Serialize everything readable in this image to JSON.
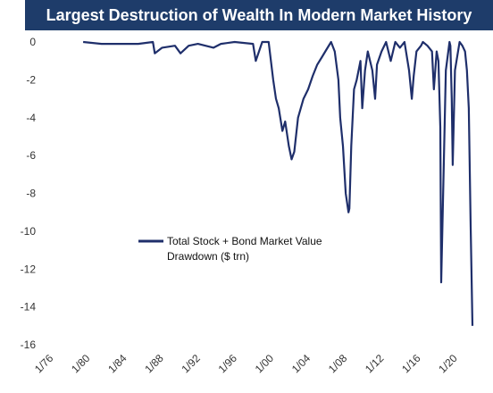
{
  "chart_data": {
    "type": "line",
    "title": "Largest Destruction of Wealth In Modern Market History",
    "xlabel": "",
    "ylabel": "",
    "x_ticks": [
      "1/76",
      "1/80",
      "1/84",
      "1/88",
      "1/92",
      "1/96",
      "1/00",
      "1/04",
      "1/08",
      "1/12",
      "1/16",
      "1/20"
    ],
    "y_ticks": [
      0,
      -2,
      -4,
      -6,
      -8,
      -10,
      -12,
      -14,
      -16
    ],
    "xlim": [
      1976.0,
      2022.5
    ],
    "ylim": [
      -16,
      0
    ],
    "grid": false,
    "legend_position": "center-left",
    "color": "#1f2f6b",
    "series": [
      {
        "name": "Total Stock + Bond Market Value Drawdown ($ trn)",
        "x": [
          1980.0,
          1982.0,
          1984.0,
          1986.0,
          1987.6,
          1987.8,
          1988.6,
          1990.0,
          1990.6,
          1991.5,
          1992.5,
          1994.2,
          1995.0,
          1996.5,
          1998.5,
          1998.8,
          1999.5,
          2000.2,
          2000.7,
          2001.0,
          2001.3,
          2001.7,
          2002.0,
          2002.4,
          2002.7,
          2003.0,
          2003.4,
          2004.0,
          2004.5,
          2005.0,
          2005.5,
          2006.0,
          2006.5,
          2007.0,
          2007.4,
          2007.8,
          2008.0,
          2008.3,
          2008.6,
          2008.9,
          2009.0,
          2009.2,
          2009.5,
          2009.8,
          2010.2,
          2010.4,
          2010.7,
          2011.0,
          2011.5,
          2011.8,
          2012.0,
          2012.5,
          2013.0,
          2013.5,
          2014.0,
          2014.5,
          2015.0,
          2015.5,
          2015.8,
          2016.0,
          2016.3,
          2016.8,
          2017.0,
          2017.5,
          2018.0,
          2018.2,
          2018.5,
          2018.7,
          2018.9,
          2019.0,
          2019.5,
          2019.9,
          2020.0,
          2020.15,
          2020.25,
          2020.5,
          2021.0,
          2021.3,
          2021.6,
          2021.8,
          2022.0,
          2022.2,
          2022.4
        ],
        "values": [
          0.0,
          -0.1,
          -0.1,
          -0.1,
          0.0,
          -0.6,
          -0.3,
          -0.2,
          -0.6,
          -0.2,
          -0.1,
          -0.3,
          -0.1,
          0.0,
          -0.1,
          -1.0,
          0.0,
          0.0,
          -2.0,
          -3.0,
          -3.5,
          -4.7,
          -4.2,
          -5.5,
          -6.2,
          -5.8,
          -4.0,
          -3.0,
          -2.5,
          -1.8,
          -1.2,
          -0.8,
          -0.4,
          0.0,
          -0.5,
          -2.0,
          -4.0,
          -5.5,
          -8.0,
          -9.0,
          -8.8,
          -5.5,
          -2.5,
          -2.0,
          -1.0,
          -3.5,
          -1.5,
          -0.5,
          -1.5,
          -3.0,
          -1.2,
          -0.5,
          0.0,
          -1.0,
          0.0,
          -0.3,
          0.0,
          -1.5,
          -3.0,
          -1.8,
          -0.5,
          -0.2,
          0.0,
          -0.2,
          -0.5,
          -2.5,
          -0.5,
          -1.0,
          -4.5,
          -12.7,
          -1.5,
          0.0,
          -0.2,
          -3.0,
          -6.5,
          -1.5,
          0.0,
          -0.2,
          -0.5,
          -1.5,
          -3.5,
          -9.5,
          -15.0
        ]
      }
    ]
  }
}
